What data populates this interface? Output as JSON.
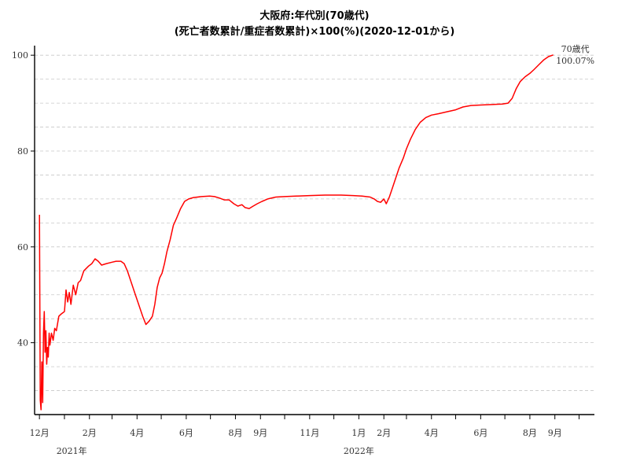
{
  "chart_data": {
    "type": "line",
    "title_line1": "大阪府:年代別(70歳代)",
    "title_line2": "(死亡者数累計/重症者数累計)×100(%)(2020-12-01から)",
    "ylim": [
      25,
      102
    ],
    "yticks": [
      40,
      60,
      80,
      100
    ],
    "y_gridlines": [
      25,
      30,
      35,
      40,
      45,
      50,
      55,
      60,
      65,
      70,
      75,
      80,
      85,
      90,
      95,
      100
    ],
    "xlim": [
      "2020-11-25",
      "2022-10-20"
    ],
    "grid": true,
    "month_ticks": [
      {
        "date": "2020-12-01",
        "label": "12月"
      },
      {
        "date": "2021-01-01",
        "label": ""
      },
      {
        "date": "2021-02-01",
        "label": "2月"
      },
      {
        "date": "2021-03-01",
        "label": ""
      },
      {
        "date": "2021-04-01",
        "label": "4月"
      },
      {
        "date": "2021-05-01",
        "label": ""
      },
      {
        "date": "2021-06-01",
        "label": "6月"
      },
      {
        "date": "2021-07-01",
        "label": ""
      },
      {
        "date": "2021-08-01",
        "label": "8月"
      },
      {
        "date": "2021-09-01",
        "label": "9月"
      },
      {
        "date": "2021-10-01",
        "label": ""
      },
      {
        "date": "2021-11-01",
        "label": "11月"
      },
      {
        "date": "2021-12-01",
        "label": ""
      },
      {
        "date": "2022-01-01",
        "label": "1月"
      },
      {
        "date": "2022-02-01",
        "label": "2月"
      },
      {
        "date": "2022-03-01",
        "label": ""
      },
      {
        "date": "2022-04-01",
        "label": "4月"
      },
      {
        "date": "2022-05-01",
        "label": ""
      },
      {
        "date": "2022-06-01",
        "label": "6月"
      },
      {
        "date": "2022-07-01",
        "label": ""
      },
      {
        "date": "2022-08-01",
        "label": "8月"
      },
      {
        "date": "2022-09-01",
        "label": "9月"
      },
      {
        "date": "2022-10-01",
        "label": ""
      }
    ],
    "year_labels": [
      {
        "date": "2021-01-10",
        "label": "2021年"
      },
      {
        "date": "2022-01-01",
        "label": "2022年"
      }
    ],
    "series": [
      {
        "name": "70歳代",
        "color": "#ff0000",
        "end_label": "100.07%",
        "points": [
          [
            "2020-12-01",
            66.7
          ],
          [
            "2020-12-02",
            28.0
          ],
          [
            "2020-12-03",
            26.0
          ],
          [
            "2020-12-04",
            36.0
          ],
          [
            "2020-12-05",
            27.5
          ],
          [
            "2020-12-06",
            42.0
          ],
          [
            "2020-12-07",
            46.5
          ],
          [
            "2020-12-08",
            38.0
          ],
          [
            "2020-12-09",
            42.5
          ],
          [
            "2020-12-10",
            35.5
          ],
          [
            "2020-12-11",
            39.0
          ],
          [
            "2020-12-12",
            37.0
          ],
          [
            "2020-12-13",
            42.0
          ],
          [
            "2020-12-14",
            39.5
          ],
          [
            "2020-12-16",
            42.0
          ],
          [
            "2020-12-18",
            40.5
          ],
          [
            "2020-12-20",
            43.0
          ],
          [
            "2020-12-22",
            42.5
          ],
          [
            "2020-12-25",
            45.5
          ],
          [
            "2020-12-28",
            46.0
          ],
          [
            "2021-01-01",
            46.5
          ],
          [
            "2021-01-03",
            51.0
          ],
          [
            "2021-01-05",
            48.5
          ],
          [
            "2021-01-07",
            50.5
          ],
          [
            "2021-01-09",
            48.0
          ],
          [
            "2021-01-12",
            52.0
          ],
          [
            "2021-01-15",
            50.0
          ],
          [
            "2021-01-18",
            52.5
          ],
          [
            "2021-01-21",
            53.0
          ],
          [
            "2021-01-25",
            55.0
          ],
          [
            "2021-01-31",
            56.0
          ],
          [
            "2021-02-04",
            56.5
          ],
          [
            "2021-02-08",
            57.5
          ],
          [
            "2021-02-12",
            57.0
          ],
          [
            "2021-02-16",
            56.2
          ],
          [
            "2021-02-22",
            56.5
          ],
          [
            "2021-03-01",
            56.8
          ],
          [
            "2021-03-06",
            57.0
          ],
          [
            "2021-03-12",
            57.0
          ],
          [
            "2021-03-16",
            56.5
          ],
          [
            "2021-03-20",
            55.0
          ],
          [
            "2021-03-25",
            52.5
          ],
          [
            "2021-03-30",
            50.0
          ],
          [
            "2021-04-04",
            47.5
          ],
          [
            "2021-04-08",
            45.5
          ],
          [
            "2021-04-12",
            43.8
          ],
          [
            "2021-04-16",
            44.5
          ],
          [
            "2021-04-20",
            45.5
          ],
          [
            "2021-04-23",
            48.0
          ],
          [
            "2021-04-26",
            51.5
          ],
          [
            "2021-04-29",
            53.5
          ],
          [
            "2021-05-02",
            54.5
          ],
          [
            "2021-05-05",
            56.5
          ],
          [
            "2021-05-08",
            59.0
          ],
          [
            "2021-05-12",
            61.5
          ],
          [
            "2021-05-16",
            64.5
          ],
          [
            "2021-05-20",
            66.0
          ],
          [
            "2021-05-25",
            68.0
          ],
          [
            "2021-05-30",
            69.5
          ],
          [
            "2021-06-04",
            70.0
          ],
          [
            "2021-06-10",
            70.3
          ],
          [
            "2021-06-20",
            70.5
          ],
          [
            "2021-06-30",
            70.6
          ],
          [
            "2021-07-06",
            70.5
          ],
          [
            "2021-07-12",
            70.2
          ],
          [
            "2021-07-18",
            69.8
          ],
          [
            "2021-07-24",
            69.8
          ],
          [
            "2021-07-30",
            69.0
          ],
          [
            "2021-08-04",
            68.5
          ],
          [
            "2021-08-09",
            68.8
          ],
          [
            "2021-08-13",
            68.2
          ],
          [
            "2021-08-18",
            68.0
          ],
          [
            "2021-08-23",
            68.5
          ],
          [
            "2021-08-28",
            69.0
          ],
          [
            "2021-09-03",
            69.5
          ],
          [
            "2021-09-10",
            70.0
          ],
          [
            "2021-09-20",
            70.4
          ],
          [
            "2021-10-01",
            70.5
          ],
          [
            "2021-10-15",
            70.6
          ],
          [
            "2021-11-01",
            70.7
          ],
          [
            "2021-11-20",
            70.8
          ],
          [
            "2021-12-10",
            70.8
          ],
          [
            "2021-12-25",
            70.7
          ],
          [
            "2022-01-05",
            70.6
          ],
          [
            "2022-01-15",
            70.4
          ],
          [
            "2022-01-20",
            70.0
          ],
          [
            "2022-01-24",
            69.5
          ],
          [
            "2022-01-28",
            69.3
          ],
          [
            "2022-02-01",
            70.0
          ],
          [
            "2022-02-04",
            69.0
          ],
          [
            "2022-02-08",
            70.5
          ],
          [
            "2022-02-12",
            72.5
          ],
          [
            "2022-02-16",
            74.5
          ],
          [
            "2022-02-20",
            76.5
          ],
          [
            "2022-02-25",
            78.5
          ],
          [
            "2022-03-01",
            80.5
          ],
          [
            "2022-03-06",
            82.5
          ],
          [
            "2022-03-12",
            84.5
          ],
          [
            "2022-03-18",
            86.0
          ],
          [
            "2022-03-25",
            87.0
          ],
          [
            "2022-04-01",
            87.5
          ],
          [
            "2022-04-10",
            87.8
          ],
          [
            "2022-04-20",
            88.2
          ],
          [
            "2022-05-01",
            88.6
          ],
          [
            "2022-05-10",
            89.2
          ],
          [
            "2022-05-20",
            89.5
          ],
          [
            "2022-06-01",
            89.6
          ],
          [
            "2022-06-15",
            89.7
          ],
          [
            "2022-06-28",
            89.8
          ],
          [
            "2022-07-05",
            90.0
          ],
          [
            "2022-07-10",
            91.0
          ],
          [
            "2022-07-15",
            93.0
          ],
          [
            "2022-07-20",
            94.5
          ],
          [
            "2022-07-26",
            95.5
          ],
          [
            "2022-08-01",
            96.2
          ],
          [
            "2022-08-06",
            97.0
          ],
          [
            "2022-08-12",
            98.0
          ],
          [
            "2022-08-18",
            99.0
          ],
          [
            "2022-08-24",
            99.7
          ],
          [
            "2022-08-30",
            100.07
          ]
        ]
      }
    ]
  }
}
